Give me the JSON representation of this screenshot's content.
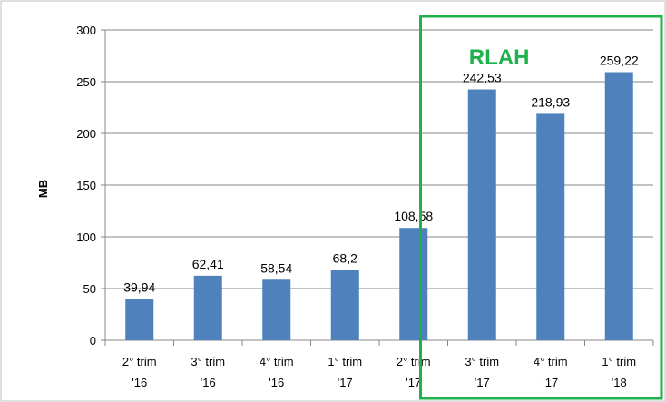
{
  "chart_data": {
    "type": "bar",
    "categories": [
      [
        "2° trim",
        "'16"
      ],
      [
        "3° trim",
        "'16"
      ],
      [
        "4° trim",
        "'16"
      ],
      [
        "1° trim",
        "'17"
      ],
      [
        "2° trim",
        "'17"
      ],
      [
        "3° trim",
        "'17"
      ],
      [
        "4° trim",
        "'17"
      ],
      [
        "1° trim",
        "'18"
      ]
    ],
    "values": [
      39.94,
      62.41,
      58.54,
      68.2,
      108.58,
      242.53,
      218.93,
      259.22
    ],
    "data_labels": [
      "39,94",
      "62,41",
      "58,54",
      "68,2",
      "108,58",
      "242,53",
      "218,93",
      "259,22"
    ],
    "ylabel": "MB",
    "ylim": [
      0,
      300
    ],
    "yticks": [
      "0",
      "50",
      "100",
      "150",
      "200",
      "250",
      "300"
    ],
    "grid": true,
    "legend": "none",
    "bar_color": "#4f81bd",
    "highlight": {
      "label": "RLAH",
      "color": "#1fb14c",
      "from_category_index": 5,
      "to_category_index": 7
    }
  }
}
